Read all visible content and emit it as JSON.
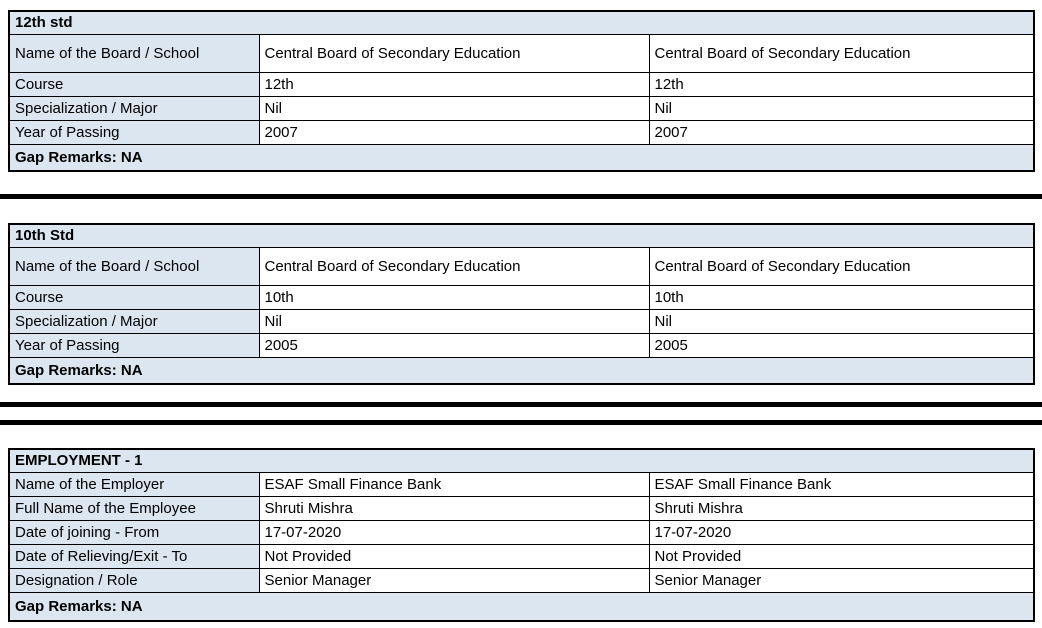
{
  "colors": {
    "label_background": "#dce6f1",
    "value_background": "#ffffff",
    "border": "#000000",
    "separator": "#000000",
    "text": "#000000"
  },
  "tables": [
    {
      "title": "12th std",
      "rows": [
        {
          "label": "Name of the Board / School",
          "value1": "Central Board of Secondary Education",
          "value2": "Central Board of Secondary Education"
        },
        {
          "label": "Course",
          "value1": "12th",
          "value2": "12th"
        },
        {
          "label": "Specialization / Major",
          "value1": "Nil",
          "value2": "Nil"
        },
        {
          "label": "Year of Passing",
          "value1": "2007",
          "value2": "2007"
        }
      ],
      "footer": "Gap Remarks: NA"
    },
    {
      "title": "10th Std",
      "rows": [
        {
          "label": "Name of the Board / School",
          "value1": "Central Board of Secondary Education",
          "value2": "Central Board of Secondary Education"
        },
        {
          "label": "Course",
          "value1": "10th",
          "value2": "10th"
        },
        {
          "label": "Specialization / Major",
          "value1": "Nil",
          "value2": "Nil"
        },
        {
          "label": "Year of Passing",
          "value1": "2005",
          "value2": "2005"
        }
      ],
      "footer": "Gap Remarks: NA"
    },
    {
      "title": "EMPLOYMENT - 1",
      "rows": [
        {
          "label": "Name of the Employer",
          "value1": "ESAF Small Finance Bank",
          "value2": "ESAF Small Finance Bank"
        },
        {
          "label": "Full Name of the Employee",
          "value1": "Shruti Mishra",
          "value2": "Shruti Mishra"
        },
        {
          "label": "Date of joining - From",
          "value1": "17-07-2020",
          "value2": "17-07-2020"
        },
        {
          "label": "Date of Relieving/Exit - To",
          "value1": "Not Provided",
          "value2": "Not Provided"
        },
        {
          "label": "Designation / Role",
          "value1": "Senior Manager",
          "value2": "Senior Manager"
        }
      ],
      "footer": "Gap Remarks: NA"
    }
  ]
}
